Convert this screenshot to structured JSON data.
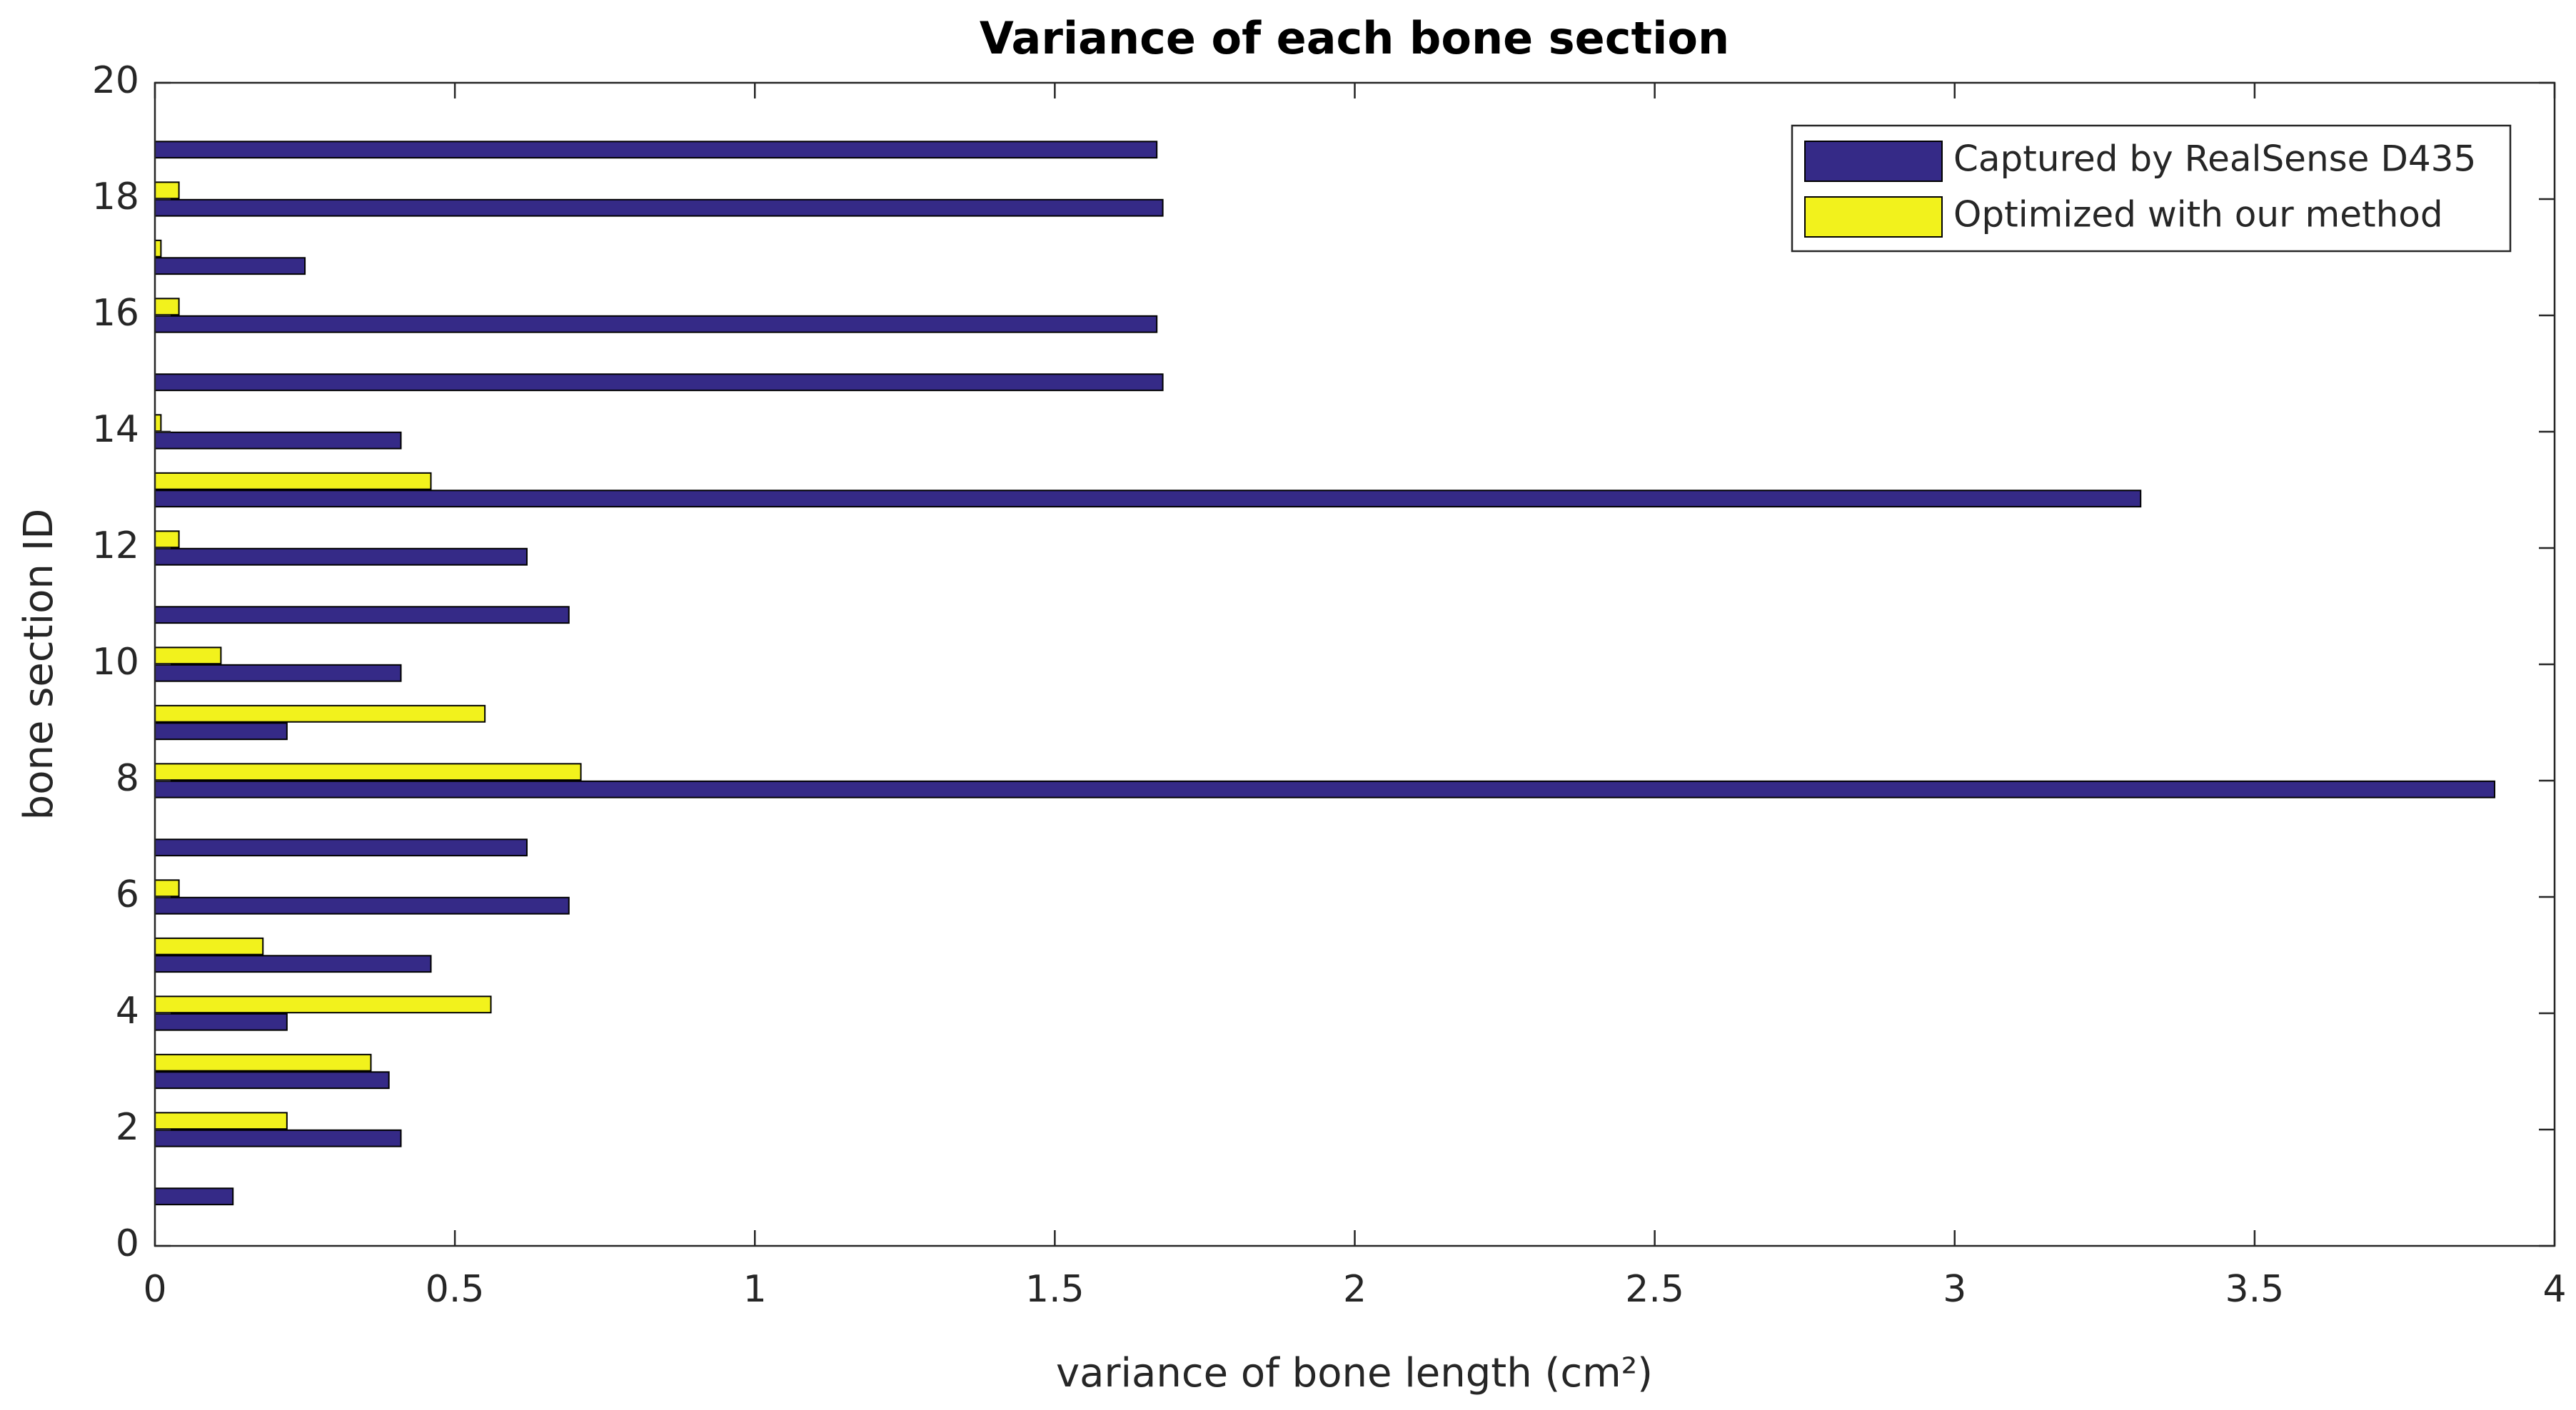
{
  "chart_data": {
    "type": "barh",
    "title": "Variance of each bone section",
    "xlabel": "variance of bone length (cm²)",
    "ylabel": "bone section ID",
    "categories": [
      1,
      2,
      3,
      4,
      5,
      6,
      7,
      8,
      9,
      10,
      11,
      12,
      13,
      14,
      15,
      16,
      17,
      18,
      19
    ],
    "series": [
      {
        "name": "Captured by RealSense D435",
        "color": "#352a87",
        "values": [
          0.13,
          0.41,
          0.39,
          0.22,
          0.46,
          0.69,
          0.62,
          3.9,
          0.22,
          0.41,
          0.69,
          0.62,
          3.31,
          0.41,
          1.68,
          1.67,
          0.25,
          1.68,
          1.67
        ]
      },
      {
        "name": "Optimized with our method",
        "color": "#f2f21c",
        "values": [
          0,
          0.22,
          0.36,
          0.56,
          0.18,
          0.04,
          0,
          0.71,
          0.55,
          0.11,
          0,
          0.04,
          0.46,
          0.01,
          0,
          0.04,
          0.01,
          0.04,
          0
        ]
      }
    ],
    "xlim": [
      0,
      4
    ],
    "xticks": [
      0,
      0.5,
      1,
      1.5,
      2,
      2.5,
      3,
      3.5,
      4
    ],
    "ylim": [
      0,
      20
    ],
    "yticks": [
      0,
      2,
      4,
      6,
      8,
      10,
      12,
      14,
      16,
      18,
      20
    ],
    "legend": "upper right"
  }
}
